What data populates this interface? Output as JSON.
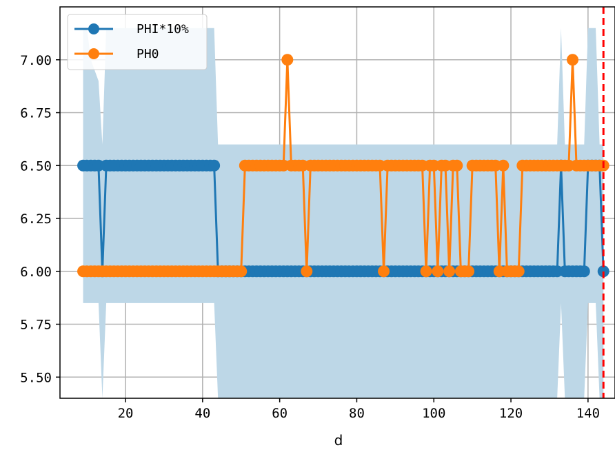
{
  "chart_data": {
    "type": "line",
    "title": "",
    "xlabel": "d",
    "ylabel": "",
    "xlim": [
      3,
      147
    ],
    "ylim": [
      5.4,
      7.25
    ],
    "grid": true,
    "legend_placement": "top-left",
    "xticks": [
      20,
      40,
      60,
      80,
      100,
      120,
      140
    ],
    "yticks": [
      5.5,
      5.75,
      6.0,
      6.25,
      6.5,
      6.75,
      7.0
    ],
    "ytick_labels": [
      "5.50",
      "5.75",
      "6.00",
      "6.25",
      "6.50",
      "6.75",
      "7.00"
    ],
    "band": {
      "color": "#bdd7e7",
      "x": [
        9,
        10,
        11,
        13,
        14,
        15,
        20,
        30,
        40,
        43,
        44,
        50,
        60,
        80,
        100,
        120,
        132,
        133,
        134,
        136,
        139,
        140,
        141,
        142,
        143,
        144
      ],
      "upper": [
        7.15,
        7.15,
        7.0,
        6.9,
        6.6,
        7.15,
        7.15,
        7.15,
        7.15,
        7.15,
        6.6,
        6.6,
        6.6,
        6.6,
        6.6,
        6.6,
        6.6,
        7.15,
        6.6,
        6.6,
        6.6,
        7.15,
        7.15,
        7.15,
        6.6,
        6.6
      ],
      "lower": [
        5.85,
        5.85,
        5.85,
        5.85,
        5.4,
        5.85,
        5.85,
        5.85,
        5.85,
        5.85,
        5.4,
        5.4,
        5.4,
        5.4,
        5.4,
        5.4,
        5.4,
        5.85,
        5.4,
        5.4,
        5.4,
        5.85,
        5.85,
        5.85,
        5.4,
        5.4
      ]
    },
    "vline": {
      "x": 144,
      "color": "#ff0000"
    },
    "series": [
      {
        "name": "PHI*10%",
        "color": "#1f77b4",
        "x": [
          9,
          10,
          11,
          12,
          13,
          14,
          15,
          16,
          17,
          18,
          19,
          20,
          21,
          22,
          23,
          24,
          25,
          26,
          27,
          28,
          29,
          30,
          31,
          32,
          33,
          34,
          35,
          36,
          37,
          38,
          39,
          40,
          41,
          42,
          43,
          44,
          45,
          46,
          47,
          48,
          49,
          50,
          51,
          52,
          53,
          54,
          55,
          56,
          57,
          58,
          59,
          60,
          61,
          62,
          63,
          64,
          65,
          66,
          67,
          68,
          69,
          70,
          71,
          72,
          73,
          74,
          75,
          76,
          77,
          78,
          79,
          80,
          81,
          82,
          83,
          84,
          85,
          86,
          87,
          88,
          89,
          90,
          91,
          92,
          93,
          94,
          95,
          96,
          97,
          98,
          99,
          100,
          101,
          102,
          103,
          104,
          105,
          106,
          107,
          108,
          109,
          110,
          111,
          112,
          113,
          114,
          115,
          116,
          117,
          118,
          119,
          120,
          121,
          122,
          123,
          124,
          125,
          126,
          127,
          128,
          129,
          130,
          131,
          132,
          133,
          134,
          135,
          136,
          137,
          138,
          139,
          140,
          141,
          142,
          143,
          144
        ],
        "values": [
          6.5,
          6.5,
          6.5,
          6.5,
          6.5,
          6.0,
          6.5,
          6.5,
          6.5,
          6.5,
          6.5,
          6.5,
          6.5,
          6.5,
          6.5,
          6.5,
          6.5,
          6.5,
          6.5,
          6.5,
          6.5,
          6.5,
          6.5,
          6.5,
          6.5,
          6.5,
          6.5,
          6.5,
          6.5,
          6.5,
          6.5,
          6.5,
          6.5,
          6.5,
          6.5,
          6.0,
          6.0,
          6.0,
          6.0,
          6.0,
          6.0,
          6.0,
          6.0,
          6.0,
          6.0,
          6.0,
          6.0,
          6.0,
          6.0,
          6.0,
          6.0,
          6.0,
          6.0,
          6.0,
          6.0,
          6.0,
          6.0,
          6.0,
          6.0,
          6.0,
          6.0,
          6.0,
          6.0,
          6.0,
          6.0,
          6.0,
          6.0,
          6.0,
          6.0,
          6.0,
          6.0,
          6.0,
          6.0,
          6.0,
          6.0,
          6.0,
          6.0,
          6.0,
          6.0,
          6.0,
          6.0,
          6.0,
          6.0,
          6.0,
          6.0,
          6.0,
          6.0,
          6.0,
          6.0,
          6.0,
          6.0,
          6.0,
          6.0,
          6.0,
          6.0,
          6.0,
          6.0,
          6.0,
          6.0,
          6.0,
          6.0,
          6.0,
          6.0,
          6.0,
          6.0,
          6.0,
          6.0,
          6.0,
          6.0,
          6.0,
          6.0,
          6.0,
          6.0,
          6.0,
          6.0,
          6.0,
          6.0,
          6.0,
          6.0,
          6.0,
          6.0,
          6.0,
          6.0,
          6.0,
          6.5,
          6.0,
          6.0,
          6.0,
          6.0,
          6.0,
          6.0,
          6.5,
          6.5,
          6.5,
          6.5,
          6.0
        ]
      },
      {
        "name": "PH0",
        "color": "#ff7f0e",
        "x": [
          9,
          10,
          11,
          12,
          13,
          14,
          15,
          16,
          17,
          18,
          19,
          20,
          21,
          22,
          23,
          24,
          25,
          26,
          27,
          28,
          29,
          30,
          31,
          32,
          33,
          34,
          35,
          36,
          37,
          38,
          39,
          40,
          41,
          42,
          43,
          44,
          45,
          46,
          47,
          48,
          49,
          50,
          51,
          52,
          53,
          54,
          55,
          56,
          57,
          58,
          59,
          60,
          61,
          62,
          63,
          64,
          65,
          66,
          67,
          68,
          69,
          70,
          71,
          72,
          73,
          74,
          75,
          76,
          77,
          78,
          79,
          80,
          81,
          82,
          83,
          84,
          85,
          86,
          87,
          88,
          89,
          90,
          91,
          92,
          93,
          94,
          95,
          96,
          97,
          98,
          99,
          100,
          101,
          102,
          103,
          104,
          105,
          106,
          107,
          108,
          109,
          110,
          111,
          112,
          113,
          114,
          115,
          116,
          117,
          118,
          119,
          120,
          121,
          122,
          123,
          124,
          125,
          126,
          127,
          128,
          129,
          130,
          131,
          132,
          133,
          134,
          135,
          136,
          137,
          138,
          139,
          140,
          141,
          142,
          143,
          144
        ],
        "values": [
          6.0,
          6.0,
          6.0,
          6.0,
          6.0,
          6.0,
          6.0,
          6.0,
          6.0,
          6.0,
          6.0,
          6.0,
          6.0,
          6.0,
          6.0,
          6.0,
          6.0,
          6.0,
          6.0,
          6.0,
          6.0,
          6.0,
          6.0,
          6.0,
          6.0,
          6.0,
          6.0,
          6.0,
          6.0,
          6.0,
          6.0,
          6.0,
          6.0,
          6.0,
          6.0,
          6.0,
          6.0,
          6.0,
          6.0,
          6.0,
          6.0,
          6.0,
          6.5,
          6.5,
          6.5,
          6.5,
          6.5,
          6.5,
          6.5,
          6.5,
          6.5,
          6.5,
          6.5,
          7.0,
          6.5,
          6.5,
          6.5,
          6.5,
          6.0,
          6.5,
          6.5,
          6.5,
          6.5,
          6.5,
          6.5,
          6.5,
          6.5,
          6.5,
          6.5,
          6.5,
          6.5,
          6.5,
          6.5,
          6.5,
          6.5,
          6.5,
          6.5,
          6.5,
          6.0,
          6.5,
          6.5,
          6.5,
          6.5,
          6.5,
          6.5,
          6.5,
          6.5,
          6.5,
          6.5,
          6.0,
          6.5,
          6.5,
          6.0,
          6.5,
          6.5,
          6.0,
          6.5,
          6.5,
          6.0,
          6.0,
          6.0,
          6.5,
          6.5,
          6.5,
          6.5,
          6.5,
          6.5,
          6.5,
          6.0,
          6.5,
          6.0,
          6.0,
          6.0,
          6.0,
          6.5,
          6.5,
          6.5,
          6.5,
          6.5,
          6.5,
          6.5,
          6.5,
          6.5,
          6.5,
          6.5,
          6.5,
          6.5,
          7.0,
          6.5,
          6.5,
          6.5,
          6.5,
          6.5,
          6.5,
          6.5,
          6.5
        ]
      }
    ]
  }
}
